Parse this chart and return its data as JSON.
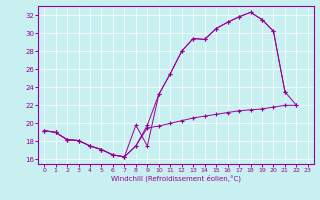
{
  "xlabel": "Windchill (Refroidissement éolien,°C)",
  "bg_color": "#c8f0f0",
  "line_color": "#990099",
  "xlim": [
    -0.5,
    23.5
  ],
  "ylim": [
    15.5,
    33.0
  ],
  "yticks": [
    16,
    18,
    20,
    22,
    24,
    26,
    28,
    30,
    32
  ],
  "xticks": [
    0,
    1,
    2,
    3,
    4,
    5,
    6,
    7,
    8,
    9,
    10,
    11,
    12,
    13,
    14,
    15,
    16,
    17,
    18,
    19,
    20,
    21,
    22,
    23
  ],
  "line1_x": [
    0,
    1,
    2,
    3,
    4,
    5,
    6,
    7,
    8,
    9,
    10,
    11,
    12,
    13,
    14,
    15,
    16,
    17,
    18,
    19,
    20,
    21
  ],
  "line1_y": [
    19.2,
    19.0,
    18.2,
    18.1,
    17.5,
    17.1,
    16.5,
    16.3,
    19.8,
    17.5,
    23.2,
    25.5,
    28.0,
    29.4,
    29.3,
    30.5,
    31.2,
    31.8,
    32.3,
    31.5,
    30.2,
    23.5
  ],
  "line2_x": [
    0,
    1,
    2,
    3,
    4,
    5,
    6,
    7,
    8,
    9,
    10,
    11,
    12,
    13,
    14,
    15,
    16,
    17,
    18,
    19,
    20,
    21,
    22
  ],
  "line2_y": [
    19.2,
    19.0,
    18.2,
    18.1,
    17.5,
    17.1,
    16.5,
    16.3,
    17.5,
    19.8,
    23.2,
    25.5,
    28.0,
    29.4,
    29.3,
    30.5,
    31.2,
    31.8,
    32.3,
    31.5,
    30.2,
    23.5,
    22.0
  ],
  "line3_x": [
    0,
    1,
    2,
    3,
    4,
    5,
    6,
    7,
    8,
    9,
    10,
    11,
    12,
    13,
    14,
    15,
    16,
    17,
    18,
    19,
    20,
    21,
    22
  ],
  "line3_y": [
    19.2,
    19.0,
    18.2,
    18.1,
    17.5,
    17.1,
    16.5,
    16.3,
    17.5,
    19.5,
    19.7,
    20.0,
    20.3,
    20.6,
    20.8,
    21.0,
    21.2,
    21.4,
    21.5,
    21.6,
    21.8,
    22.0,
    22.0
  ]
}
